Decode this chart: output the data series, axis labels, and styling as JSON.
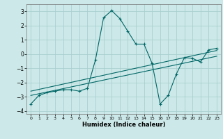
{
  "title": "",
  "xlabel": "Humidex (Indice chaleur)",
  "bg_color": "#cce8e8",
  "grid_color": "#aacfcf",
  "line_color": "#006666",
  "xlim": [
    -0.5,
    23.5
  ],
  "ylim": [
    -4.2,
    3.5
  ],
  "xticks": [
    0,
    1,
    2,
    3,
    4,
    5,
    6,
    7,
    8,
    9,
    10,
    11,
    12,
    13,
    14,
    15,
    16,
    17,
    18,
    19,
    20,
    21,
    22,
    23
  ],
  "yticks": [
    -4,
    -3,
    -2,
    -1,
    0,
    1,
    2,
    3
  ],
  "main_x": [
    0,
    1,
    2,
    3,
    4,
    5,
    6,
    7,
    8,
    9,
    10,
    11,
    12,
    13,
    14,
    15,
    16,
    17,
    18,
    19,
    20,
    21,
    22,
    23
  ],
  "main_y": [
    -3.5,
    -2.9,
    -2.7,
    -2.6,
    -2.5,
    -2.5,
    -2.6,
    -2.4,
    -0.4,
    2.55,
    3.05,
    2.5,
    1.6,
    0.7,
    0.7,
    -0.65,
    -3.5,
    -2.9,
    -1.4,
    -0.25,
    -0.3,
    -0.55,
    0.3,
    0.4
  ],
  "line1_x": [
    0,
    23
  ],
  "line1_y": [
    -2.6,
    0.25
  ],
  "line2_x": [
    0,
    23
  ],
  "line2_y": [
    -2.9,
    -0.15
  ]
}
